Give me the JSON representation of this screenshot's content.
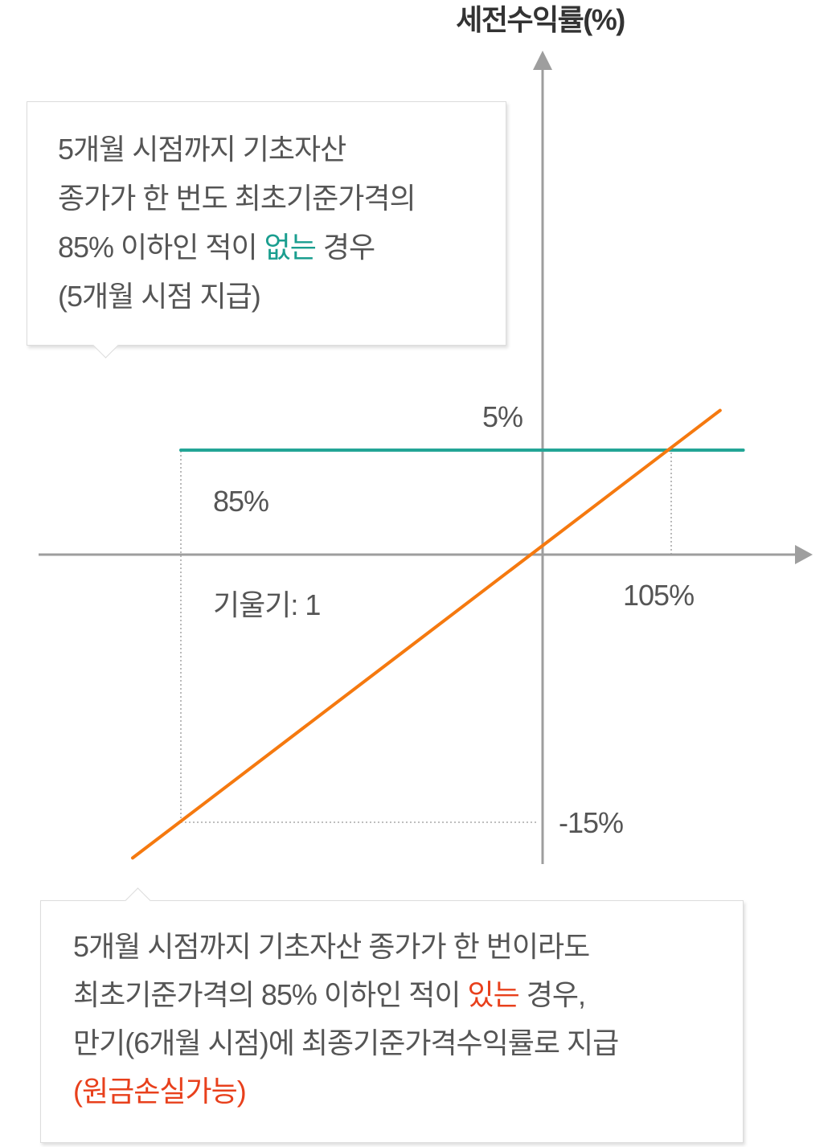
{
  "callouts": {
    "top": {
      "highlight_color": "#1a9e8f",
      "lines": [
        {
          "text": "5개월 시점까지 기초자산"
        },
        {
          "text": "종가가 한 번도 최초기준가격의"
        },
        {
          "pre": "85% 이하인 적이 ",
          "highlight": "없는",
          "post": " 경우"
        },
        {
          "text": "(5개월 시점 지급)"
        }
      ]
    },
    "bottom": {
      "highlight_color": "#e8401c",
      "lines": [
        {
          "text": "5개월 시점까지 기초자산 종가가 한 번이라도"
        },
        {
          "pre": "최초기준가격의 85% 이하인 적이 ",
          "highlight": "있는",
          "post": " 경우,"
        },
        {
          "text": "만기(6개월 시점)에 최종기준가격수익률로 지급"
        },
        {
          "highlight": "(원금손실가능)"
        }
      ]
    }
  },
  "chart_data": {
    "type": "line",
    "ylabel": "세전수익률(%)",
    "x_ticks": [
      {
        "value": 85,
        "label": "85%",
        "color": "#555555"
      },
      {
        "value": 105,
        "label": "105%",
        "color": "#555555"
      }
    ],
    "y_ticks": [
      {
        "value": 5,
        "label": "5%",
        "color": "#555555"
      },
      {
        "value": -15,
        "label": "-15%",
        "color": "#1a7cc6"
      }
    ],
    "series": [
      {
        "color": "#23a596",
        "points": [
          [
            85,
            5
          ],
          [
            107.8,
            5
          ]
        ]
      },
      {
        "color": "#f5790f",
        "points": [
          [
            83,
            -17
          ],
          [
            106.9,
            6.9
          ]
        ]
      }
    ],
    "reference_lines": [
      {
        "x": 85,
        "y_from": -15,
        "y_to": 5
      },
      {
        "y": -15,
        "x_from": 85,
        "x_to": 100
      },
      {
        "x": 105,
        "y_from": 0,
        "y_to": 5
      }
    ],
    "annotations": [
      {
        "text": "기울기: 1",
        "color": "#e5441d"
      }
    ],
    "grid": false,
    "legend": "none"
  }
}
